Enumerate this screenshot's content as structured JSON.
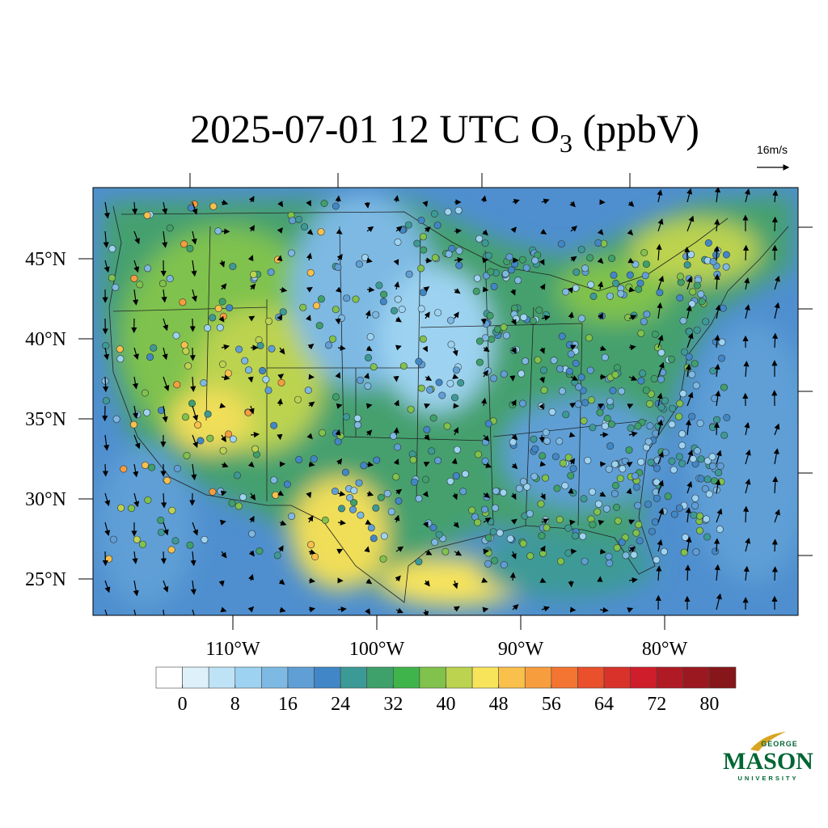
{
  "title": {
    "main": "2025-07-01 12 UTC O",
    "subscript": "3",
    "suffix": " (ppbV)"
  },
  "wind_reference": "16m/s",
  "map": {
    "lat_ticks": [
      {
        "value": 45,
        "label": "45°N"
      },
      {
        "value": 40,
        "label": "40°N"
      },
      {
        "value": 35,
        "label": "35°N"
      },
      {
        "value": 30,
        "label": "30°N"
      },
      {
        "value": 25,
        "label": "25°N"
      }
    ],
    "lon_ticks": [
      {
        "value": -110,
        "label": "110°W"
      },
      {
        "value": -100,
        "label": "100°W"
      },
      {
        "value": -90,
        "label": "90°W"
      },
      {
        "value": -80,
        "label": "80°W"
      }
    ]
  },
  "colorbar": {
    "range": [
      -4,
      84
    ],
    "colors": [
      "#ffffff",
      "#def0fa",
      "#bfe3f6",
      "#9dd3f1",
      "#7db9e3",
      "#5f9fd6",
      "#4187c7",
      "#3c9a96",
      "#3ea06a",
      "#3fb44b",
      "#80c24b",
      "#bcd34f",
      "#f8e45b",
      "#f9c04b",
      "#f89d3d",
      "#f47431",
      "#e9502b",
      "#d9322b",
      "#d01d2b",
      "#b01a25",
      "#9c1820",
      "#861619"
    ],
    "ticks": [
      0,
      8,
      16,
      24,
      32,
      40,
      48,
      56,
      64,
      72,
      80
    ]
  },
  "logo": {
    "top": "GEORGE",
    "name": "MASON",
    "bottom": "UNIVERSITY"
  }
}
